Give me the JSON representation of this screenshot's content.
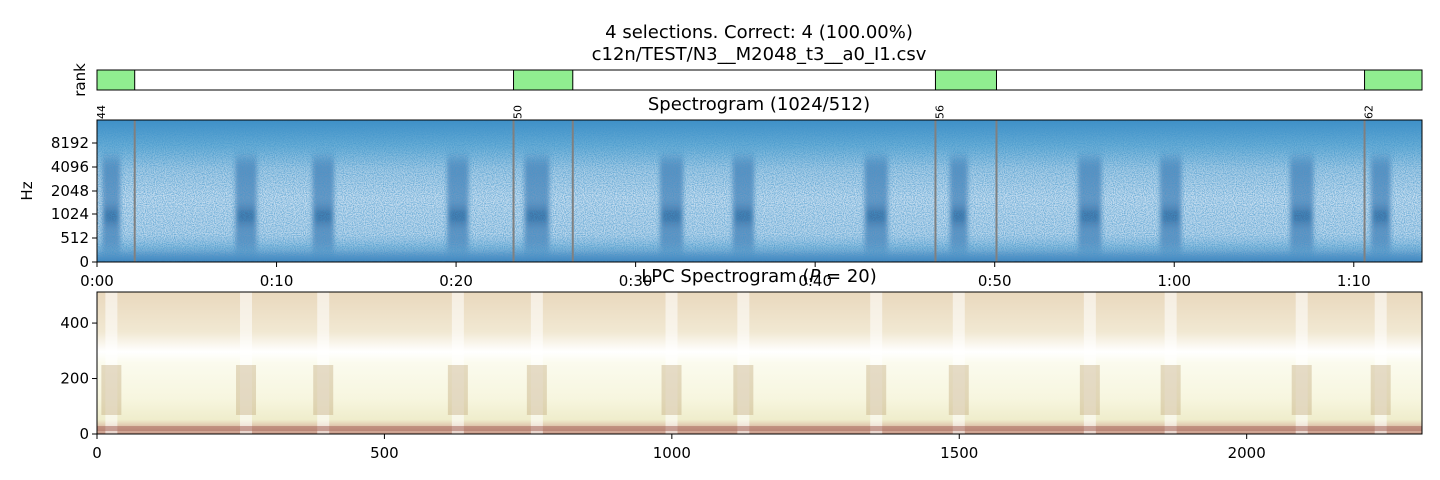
{
  "figure": {
    "title_line1": "4 selections.  Correct: 4 (100.00%)",
    "title_line2": "c12n/TEST/N3__M2048_t3__a0_I1.csv",
    "colors": {
      "selection": "#90ee90",
      "frame": "#000000",
      "boundary": "#808080"
    }
  },
  "chart_data": [
    {
      "type": "bar",
      "name": "rank-strip",
      "ylabel": "rank",
      "x_range": [
        0,
        73.8
      ],
      "selections": [
        {
          "start": 0.0,
          "end": 2.1,
          "label": "44",
          "correct": true
        },
        {
          "start": 23.2,
          "end": 26.5,
          "label": "50",
          "correct": true
        },
        {
          "start": 46.7,
          "end": 50.1,
          "label": "56",
          "correct": true
        },
        {
          "start": 70.6,
          "end": 73.8,
          "label": "62",
          "correct": true
        }
      ]
    },
    {
      "type": "heatmap",
      "name": "spectrogram",
      "title": "Spectrogram (1024/512)",
      "ylabel": "Hz",
      "yscale": "log2",
      "yticks": [
        0,
        512,
        1024,
        2048,
        4096,
        8192
      ],
      "xticks": [
        "0:00",
        "0:10",
        "0:20",
        "0:30",
        "0:40",
        "0:50",
        "1:00",
        "1:10"
      ],
      "xtick_values": [
        0,
        10,
        20,
        30,
        40,
        50,
        60,
        70
      ],
      "xlim": [
        0,
        73.8
      ],
      "colormap": "Blues",
      "boundaries": [
        2.1,
        23.2,
        26.5,
        46.7,
        50.1,
        70.6
      ],
      "bursts": [
        {
          "t": 0.8,
          "w": 1.0
        },
        {
          "t": 8.3,
          "w": 1.2
        },
        {
          "t": 12.6,
          "w": 1.2
        },
        {
          "t": 20.1,
          "w": 1.2
        },
        {
          "t": 24.5,
          "w": 1.4
        },
        {
          "t": 32.0,
          "w": 1.3
        },
        {
          "t": 36.0,
          "w": 1.2
        },
        {
          "t": 43.4,
          "w": 1.3
        },
        {
          "t": 48.0,
          "w": 1.0
        },
        {
          "t": 55.3,
          "w": 1.3
        },
        {
          "t": 59.8,
          "w": 1.2
        },
        {
          "t": 67.1,
          "w": 1.3
        },
        {
          "t": 71.5,
          "w": 1.1
        }
      ]
    },
    {
      "type": "heatmap",
      "name": "lpc-spectrogram",
      "title": "LPC Spectrogram ($P=20$)",
      "yticks": [
        0,
        200,
        400
      ],
      "ylim": [
        0,
        512
      ],
      "xticks": [
        0,
        500,
        1000,
        1500,
        2000
      ],
      "xlim": [
        0,
        2305
      ],
      "colormap": "pink-yellow"
    }
  ]
}
